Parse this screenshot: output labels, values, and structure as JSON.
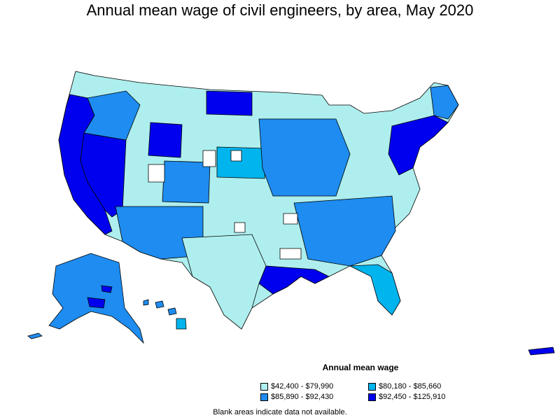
{
  "title": "Annual mean wage of civil engineers, by area, May 2020",
  "legend": {
    "title": "Annual mean wage",
    "items": [
      {
        "label": "$42,400 - $79,990",
        "color": "#aeeeee"
      },
      {
        "label": "$80,180 - $85,660",
        "color": "#00b4ee"
      },
      {
        "label": "$85,890 - $92,430",
        "color": "#1e8cf0"
      },
      {
        "label": "$92,450 - $125,910",
        "color": "#0000ee"
      }
    ]
  },
  "footnote": "Blank areas indicate data not available.",
  "colors": {
    "tier1": "#aeeeee",
    "tier2": "#00b4ee",
    "tier3": "#1e8cf0",
    "tier4": "#0000ee",
    "no_data": "#ffffff",
    "outline": "#000000"
  }
}
